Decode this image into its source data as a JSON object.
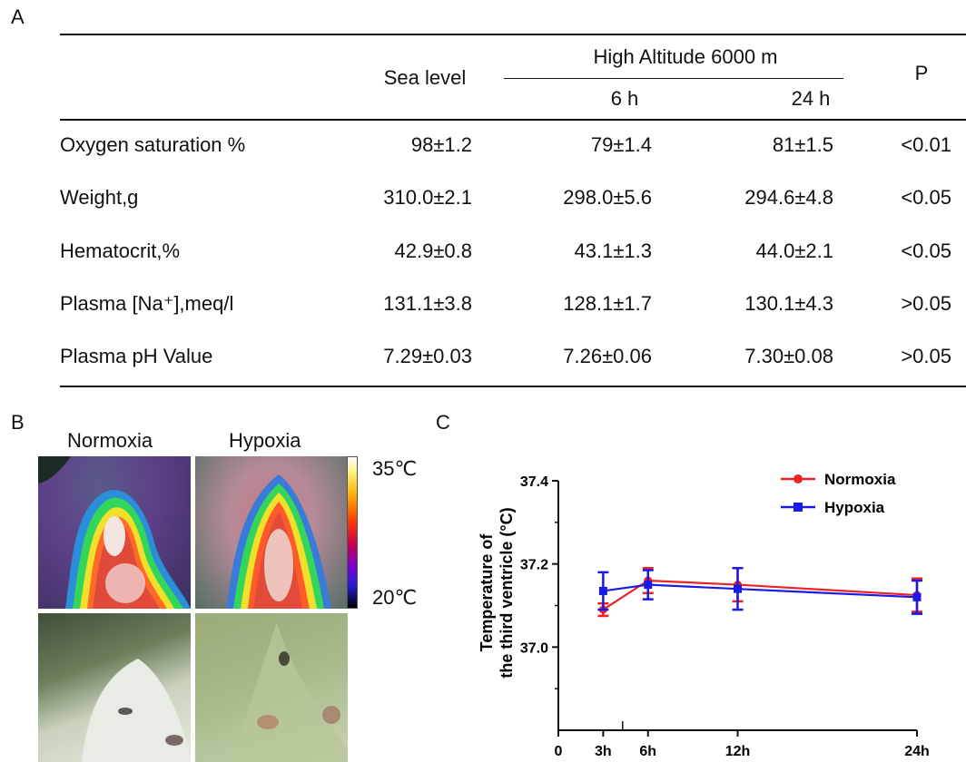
{
  "panel_labels": {
    "a": "A",
    "b": "B",
    "c": "C"
  },
  "table": {
    "header": {
      "sea_level": "Sea level",
      "high_altitude": "High Altitude 6000 m",
      "h6": "6 h",
      "h24": "24 h",
      "p": "P"
    },
    "rows": [
      {
        "label": "Oxygen saturation %",
        "sea": "98±1.2",
        "h6": "79±1.4",
        "h24": "81±1.5",
        "p": "<0.01"
      },
      {
        "label": "Weight,g",
        "sea": "310.0±2.1",
        "h6": "298.0±5.6",
        "h24": "294.6±4.8",
        "p": "<0.05"
      },
      {
        "label": "Hematocrit,%",
        "sea": "42.9±0.8",
        "h6": "43.1±1.3",
        "h24": "44.0±2.1",
        "p": "<0.05"
      },
      {
        "label": "Plasma [Na⁺],meq/l",
        "sea": "131.1±3.8",
        "h6": "128.1±1.7",
        "h24": "130.1±4.3",
        "p": ">0.05"
      },
      {
        "label": "Plasma pH Value",
        "sea": "7.29±0.03",
        "h6": "7.26±0.06",
        "h24": "7.30±0.08",
        "p": ">0.05"
      }
    ]
  },
  "images": {
    "normoxia_label": "Normoxia",
    "hypoxia_label": "Hypoxia",
    "scale_max": "35℃",
    "scale_min": "20℃"
  },
  "colors": {
    "normoxia": "#ee2222",
    "hypoxia": "#1a1ae6"
  },
  "chart_data": {
    "type": "line",
    "title": "",
    "xlabel": "",
    "ylabel": "Temperature of the third ventricle (°C)",
    "x_ticks": [
      "0",
      "3h",
      "6h",
      "12h",
      "24h"
    ],
    "x": [
      3,
      6,
      12,
      24
    ],
    "y_ticks": [
      "37.0",
      "37.2",
      "37.4"
    ],
    "ylim": [
      36.8,
      37.4
    ],
    "legend_position": "top-right",
    "grid": false,
    "series": [
      {
        "name": "Normoxia",
        "marker": "circle",
        "values": [
          37.09,
          37.16,
          37.15,
          37.125
        ],
        "errors": [
          0.015,
          0.03,
          0.04,
          0.04
        ]
      },
      {
        "name": "Hypoxia",
        "marker": "square",
        "values": [
          37.135,
          37.15,
          37.14,
          37.12
        ],
        "errors": [
          0.045,
          0.035,
          0.05,
          0.04
        ]
      }
    ]
  }
}
